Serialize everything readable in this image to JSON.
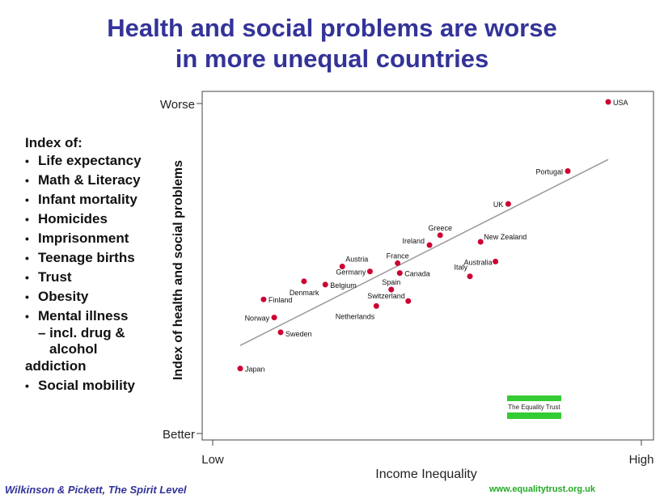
{
  "title_line1": "Health and social problems are worse",
  "title_line2": "in more unequal countries",
  "index_panel": {
    "heading": "Index of:",
    "items": [
      "Life expectancy",
      "Math & Literacy",
      "Infant mortality",
      "Homicides",
      "Imprisonment",
      "Teenage births",
      "Trust",
      "Obesity",
      "Mental illness",
      "Social mobility"
    ],
    "mental_illness_sub1": "– incl. drug &",
    "mental_illness_sub2": "alcohol",
    "mental_illness_sub3": "addiction"
  },
  "footer": {
    "credit": "Wilkinson & Pickett, The Spirit Level",
    "url": "www.equalitytrust.org.uk"
  },
  "logo": {
    "text": "The Equality Trust",
    "color": "#33cc33"
  },
  "colors": {
    "title": "#333399",
    "point": "#cc0033",
    "trend": "#999999",
    "frame": "#444444"
  },
  "chart_data": {
    "type": "scatter",
    "xlabel": "Income Inequality",
    "ylabel": "Index of health and social problems",
    "x_tick_labels": [
      "Low",
      "High"
    ],
    "y_tick_labels": [
      "Worse",
      "Better"
    ],
    "xlim": [
      0,
      10
    ],
    "ylim": [
      0,
      10
    ],
    "points": [
      {
        "label": "USA",
        "x": 9.3,
        "y": 10.0
      },
      {
        "label": "Portugal",
        "x": 8.35,
        "y": 7.9
      },
      {
        "label": "UK",
        "x": 6.95,
        "y": 6.9
      },
      {
        "label": "Greece",
        "x": 5.35,
        "y": 5.95
      },
      {
        "label": "Ireland",
        "x": 5.1,
        "y": 5.65
      },
      {
        "label": "New Zealand",
        "x": 6.3,
        "y": 5.75
      },
      {
        "label": "Australia",
        "x": 6.65,
        "y": 5.15
      },
      {
        "label": "Italy",
        "x": 6.05,
        "y": 4.7
      },
      {
        "label": "France",
        "x": 4.35,
        "y": 5.1
      },
      {
        "label": "Canada",
        "x": 4.4,
        "y": 4.8
      },
      {
        "label": "Austria",
        "x": 3.05,
        "y": 5.0
      },
      {
        "label": "Germany",
        "x": 3.7,
        "y": 4.85
      },
      {
        "label": "Denmark",
        "x": 2.15,
        "y": 4.55
      },
      {
        "label": "Belgium",
        "x": 2.65,
        "y": 4.45
      },
      {
        "label": "Spain",
        "x": 4.2,
        "y": 4.3
      },
      {
        "label": "Switzerland",
        "x": 4.6,
        "y": 3.95
      },
      {
        "label": "Netherlands",
        "x": 3.85,
        "y": 3.8
      },
      {
        "label": "Finland",
        "x": 1.2,
        "y": 4.0
      },
      {
        "label": "Norway",
        "x": 1.45,
        "y": 3.45
      },
      {
        "label": "Sweden",
        "x": 1.6,
        "y": 3.0
      },
      {
        "label": "Japan",
        "x": 0.65,
        "y": 1.9
      }
    ],
    "trendline": {
      "x": [
        0.65,
        9.3
      ],
      "y": [
        2.6,
        8.25
      ]
    }
  }
}
